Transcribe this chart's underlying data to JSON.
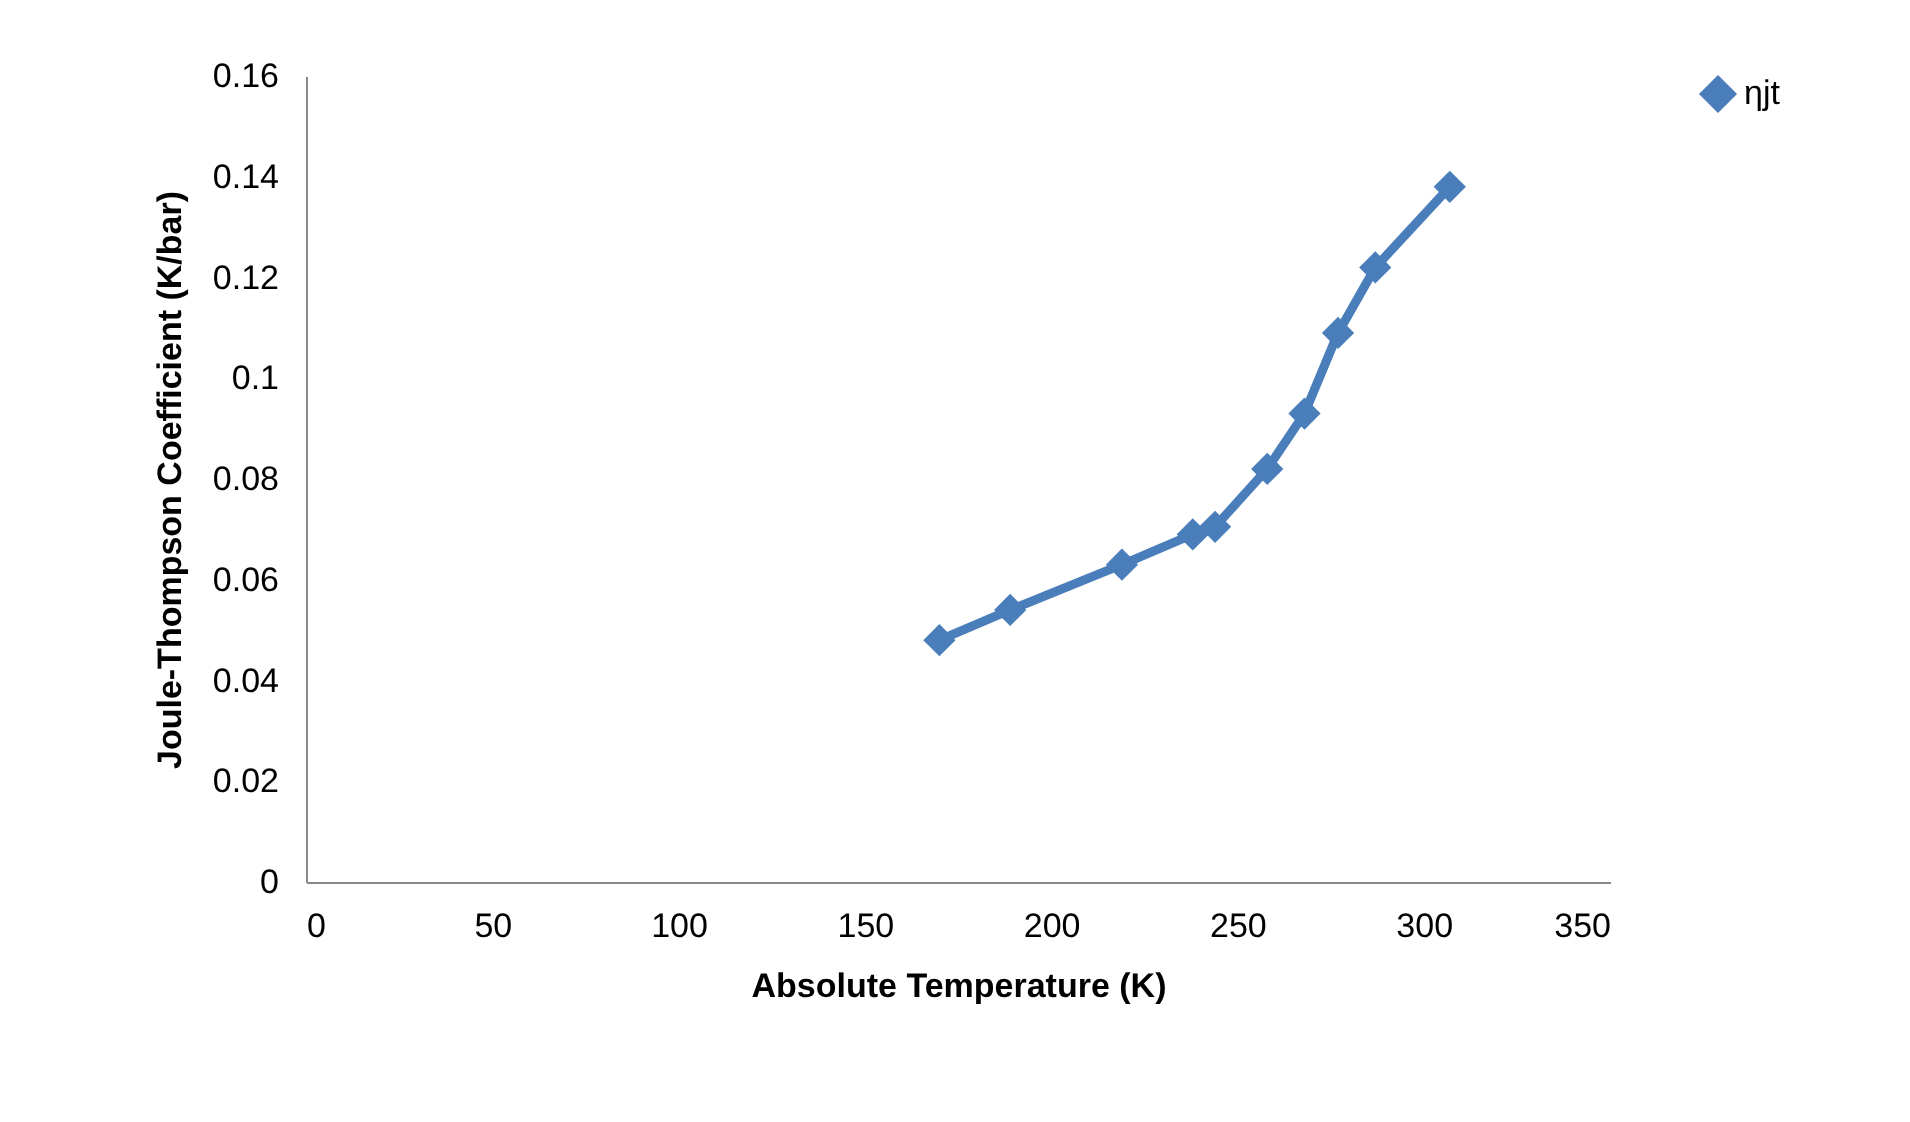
{
  "chart_data": {
    "type": "line",
    "xlabel": "Absolute Temperature (K)",
    "ylabel": "Joule-Thompson Coefficient (K/bar)",
    "x": [
      170,
      189,
      219,
      238,
      244,
      258,
      268,
      277,
      287,
      307
    ],
    "series": [
      {
        "name": "ηjt",
        "color": "#4a7ebb",
        "values": [
          0.048,
          0.054,
          0.063,
          0.069,
          0.0705,
          0.082,
          0.093,
          0.109,
          0.122,
          0.138
        ]
      }
    ],
    "xlim": [
      0,
      350
    ],
    "xticks": [
      0,
      50,
      100,
      150,
      200,
      250,
      300,
      350
    ],
    "ylim": [
      0,
      0.16
    ],
    "yticks": [
      0,
      0.02,
      0.04,
      0.06,
      0.08,
      0.1,
      0.12,
      0.14,
      0.16
    ],
    "grid": false,
    "legend": "right",
    "marker": "diamond",
    "line_style": "solid"
  }
}
